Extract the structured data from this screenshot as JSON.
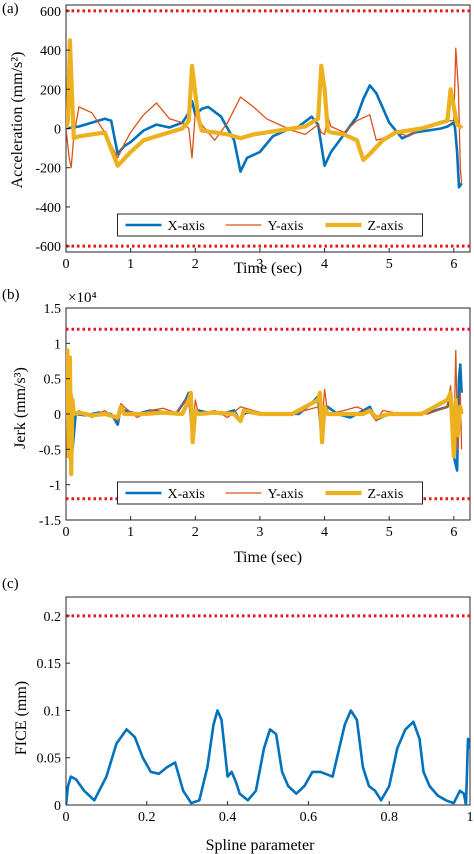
{
  "panel_labels": [
    "(a)",
    "(b)",
    "(c)"
  ],
  "colors": {
    "x": "#0072BD",
    "y": "#D95319",
    "z": "#EDB120",
    "limit": "#E8161B"
  },
  "chart_data": [
    {
      "type": "line",
      "panel": "(a)",
      "xlabel": "Time (sec)",
      "ylabel": "Acceleration (mm/s²)",
      "xlim": [
        0,
        6.25
      ],
      "ylim": [
        -630,
        630
      ],
      "xticks": [
        0,
        1,
        2,
        3,
        4,
        5,
        6
      ],
      "xtick_labels": [
        "0",
        "1",
        "2",
        "3",
        "4",
        "5",
        "6"
      ],
      "yticks": [
        -600,
        -400,
        -200,
        0,
        200,
        400,
        600
      ],
      "ytick_labels": [
        "-600",
        "-400",
        "-200",
        "0",
        "200",
        "400",
        "600"
      ],
      "limits": [
        600,
        -600
      ],
      "legend": {
        "placement": "bottom-center",
        "entries": [
          "X-axis",
          "Y-axis",
          "Z-axis"
        ]
      },
      "series": [
        {
          "name": "X-axis",
          "key": "x",
          "x": [
            0,
            0.2,
            0.4,
            0.6,
            0.7,
            0.8,
            0.9,
            1.0,
            1.2,
            1.4,
            1.6,
            1.8,
            1.9,
            1.95,
            2.0,
            2.1,
            2.2,
            2.4,
            2.6,
            2.7,
            2.8,
            3.0,
            3.2,
            3.4,
            3.6,
            3.8,
            3.9,
            4.0,
            4.1,
            4.3,
            4.5,
            4.6,
            4.7,
            4.8,
            5.0,
            5.2,
            5.4,
            5.6,
            5.8,
            5.9,
            6.0,
            6.02,
            6.05,
            6.08,
            6.12
          ],
          "y": [
            0,
            10,
            30,
            50,
            40,
            -130,
            -90,
            -70,
            -10,
            20,
            5,
            30,
            80,
            140,
            70,
            100,
            110,
            60,
            -60,
            -220,
            -150,
            -120,
            -40,
            -10,
            10,
            60,
            20,
            -190,
            -120,
            -30,
            60,
            150,
            220,
            180,
            30,
            -50,
            -20,
            -10,
            0,
            10,
            30,
            0,
            -120,
            -300,
            -280
          ]
        },
        {
          "name": "Y-axis",
          "key": "y",
          "x": [
            0,
            0.05,
            0.08,
            0.12,
            0.2,
            0.4,
            0.6,
            0.8,
            0.9,
            1.0,
            1.2,
            1.4,
            1.6,
            1.8,
            1.9,
            1.95,
            2.0,
            2.1,
            2.3,
            2.5,
            2.7,
            2.9,
            3.1,
            3.3,
            3.5,
            3.7,
            3.9,
            3.95,
            4.0,
            4.05,
            4.1,
            4.3,
            4.5,
            4.7,
            4.8,
            4.9,
            5.1,
            5.3,
            5.5,
            5.7,
            5.9,
            6.0,
            6.03,
            6.07,
            6.1,
            6.12
          ],
          "y": [
            0,
            -150,
            -200,
            -40,
            110,
            80,
            -20,
            -150,
            -80,
            -20,
            70,
            130,
            50,
            30,
            0,
            -150,
            80,
            20,
            -60,
            30,
            160,
            110,
            50,
            20,
            -10,
            -30,
            20,
            -20,
            -30,
            60,
            10,
            -20,
            40,
            70,
            -60,
            -50,
            -20,
            -40,
            0,
            20,
            40,
            40,
            410,
            200,
            -200,
            -280
          ]
        },
        {
          "name": "Z-axis",
          "key": "z",
          "x": [
            0,
            0.03,
            0.06,
            0.09,
            0.12,
            0.2,
            0.4,
            0.6,
            0.8,
            1.0,
            1.2,
            1.4,
            1.6,
            1.8,
            1.9,
            1.95,
            2.0,
            2.05,
            2.1,
            2.3,
            2.5,
            2.7,
            2.9,
            3.1,
            3.3,
            3.5,
            3.7,
            3.9,
            3.95,
            4.0,
            4.05,
            4.1,
            4.3,
            4.5,
            4.6,
            4.7,
            4.9,
            5.1,
            5.3,
            5.5,
            5.7,
            5.9,
            5.95,
            6.0,
            6.05,
            6.1,
            6.12
          ],
          "y": [
            0,
            40,
            450,
            200,
            -50,
            -40,
            -30,
            -20,
            -190,
            -120,
            -60,
            -40,
            -20,
            0,
            40,
            320,
            180,
            50,
            -10,
            -20,
            -30,
            -50,
            -30,
            -20,
            -10,
            0,
            10,
            50,
            320,
            200,
            -10,
            -20,
            -30,
            -60,
            -160,
            -130,
            -60,
            -20,
            -10,
            0,
            20,
            40,
            200,
            110,
            20,
            10,
            0
          ]
        }
      ]
    },
    {
      "type": "line",
      "panel": "(b)",
      "xlabel": "Time (sec)",
      "ylabel": "Jerk (mm/s³)",
      "multiplier": "×10⁴",
      "xlim": [
        0,
        6.25
      ],
      "ylim": [
        -1.5,
        1.5
      ],
      "xticks": [
        0,
        1,
        2,
        3,
        4,
        5,
        6
      ],
      "xtick_labels": [
        "0",
        "1",
        "2",
        "3",
        "4",
        "5",
        "6"
      ],
      "yticks": [
        -1.5,
        -1,
        -0.5,
        0,
        0.5,
        1,
        1.5
      ],
      "ytick_labels": [
        "-1.5",
        "-1",
        "-0.5",
        "0",
        "0.5",
        "1",
        "1.5"
      ],
      "limits": [
        1.2,
        -1.2
      ],
      "legend": {
        "placement": "bottom-center",
        "entries": [
          "X-axis",
          "Y-axis",
          "Z-axis"
        ]
      },
      "series": [
        {
          "name": "X-axis",
          "key": "x",
          "x": [
            0,
            0.05,
            0.1,
            0.15,
            0.3,
            0.5,
            0.7,
            0.8,
            0.85,
            0.9,
            1.1,
            1.3,
            1.5,
            1.7,
            1.85,
            1.9,
            1.95,
            2.0,
            2.05,
            2.2,
            2.4,
            2.6,
            2.7,
            2.75,
            2.8,
            3.0,
            3.3,
            3.6,
            3.8,
            3.9,
            3.95,
            4.0,
            4.05,
            4.2,
            4.4,
            4.6,
            4.7,
            4.8,
            5.0,
            5.3,
            5.6,
            5.9,
            5.95,
            6.0,
            6.05,
            6.08,
            6.1,
            6.12
          ],
          "y": [
            0,
            0.4,
            -0.5,
            0,
            -0.02,
            0.02,
            0,
            -0.15,
            0.1,
            0.05,
            0,
            0.05,
            0.03,
            0,
            0.2,
            0.3,
            -0.25,
            0,
            0.05,
            0.02,
            0,
            0.05,
            -0.1,
            0,
            0.02,
            0,
            0.01,
            0,
            0.15,
            0.25,
            -0.3,
            0,
            0.1,
            0,
            -0.05,
            0.05,
            0.1,
            -0.08,
            0,
            0,
            0.02,
            0.1,
            0.3,
            -0.6,
            -0.8,
            0.5,
            0.7,
            0.3
          ]
        },
        {
          "name": "Y-axis",
          "key": "y",
          "x": [
            0,
            0.03,
            0.06,
            0.09,
            0.12,
            0.2,
            0.4,
            0.6,
            0.8,
            0.85,
            0.9,
            1.1,
            1.3,
            1.5,
            1.7,
            1.9,
            1.95,
            2.0,
            2.05,
            2.3,
            2.5,
            2.7,
            2.9,
            3.1,
            3.5,
            3.9,
            3.95,
            4.0,
            4.05,
            4.3,
            4.5,
            4.7,
            4.8,
            4.9,
            5.2,
            5.6,
            5.9,
            5.95,
            6.0,
            6.03,
            6.06,
            6.1,
            6.12
          ],
          "y": [
            0,
            0.7,
            -0.7,
            0.3,
            0,
            0.05,
            -0.05,
            0.05,
            -0.1,
            0.15,
            0.1,
            -0.05,
            0.05,
            0.08,
            0.02,
            0.25,
            -0.35,
            0.2,
            0,
            0.05,
            -0.05,
            0.1,
            0.05,
            0,
            0,
            0.1,
            -0.3,
            0.35,
            0,
            0.05,
            0.1,
            0.02,
            -0.1,
            0.05,
            0,
            0,
            0.1,
            0.4,
            -0.4,
            0.9,
            -0.5,
            0.3,
            -0.5
          ]
        },
        {
          "name": "Z-axis",
          "key": "z",
          "x": [
            0,
            0.02,
            0.04,
            0.06,
            0.08,
            0.1,
            0.12,
            0.2,
            0.4,
            0.6,
            0.8,
            0.85,
            0.9,
            1.2,
            1.5,
            1.8,
            1.9,
            1.93,
            1.96,
            2.0,
            2.05,
            2.3,
            2.6,
            2.7,
            2.75,
            3.0,
            3.5,
            3.9,
            3.93,
            3.96,
            4.0,
            4.05,
            4.3,
            4.6,
            4.7,
            4.8,
            5.0,
            5.5,
            5.9,
            5.95,
            6.0,
            6.03,
            6.06,
            6.1,
            6.12
          ],
          "y": [
            0,
            0.9,
            -0.6,
            0.8,
            -0.85,
            0.2,
            0,
            0.02,
            -0.02,
            0,
            -0.05,
            0.1,
            0,
            0,
            0.02,
            0,
            0.2,
            0.3,
            -0.4,
            0.05,
            0,
            0.02,
            0,
            -0.1,
            0.05,
            0,
            0,
            0.2,
            0.3,
            -0.4,
            0.1,
            0,
            0,
            0,
            0.05,
            -0.05,
            0,
            0,
            0.2,
            0.3,
            -0.6,
            0.2,
            -0.3,
            0.1,
            0
          ]
        }
      ]
    },
    {
      "type": "line",
      "panel": "(c)",
      "xlabel": "Spline parameter",
      "ylabel": "FICE (mm)",
      "xlim": [
        0,
        1
      ],
      "ylim": [
        0,
        0.22
      ],
      "xticks": [
        0,
        0.2,
        0.4,
        0.6,
        0.8,
        1
      ],
      "xtick_labels": [
        "0",
        "0.2",
        "0.4",
        "0.6",
        "0.8",
        "1"
      ],
      "yticks": [
        0,
        0.05,
        0.1,
        0.15,
        0.2
      ],
      "ytick_labels": [
        "0",
        "0.05",
        "0.1",
        "0.15",
        "0.2"
      ],
      "limits": [
        0.2
      ],
      "series": [
        {
          "key": "x",
          "x": [
            0,
            0.005,
            0.012,
            0.025,
            0.045,
            0.07,
            0.1,
            0.125,
            0.15,
            0.17,
            0.19,
            0.21,
            0.23,
            0.25,
            0.27,
            0.29,
            0.31,
            0.33,
            0.35,
            0.365,
            0.375,
            0.385,
            0.395,
            0.4,
            0.41,
            0.42,
            0.43,
            0.45,
            0.47,
            0.49,
            0.505,
            0.52,
            0.535,
            0.55,
            0.57,
            0.59,
            0.61,
            0.63,
            0.66,
            0.69,
            0.705,
            0.72,
            0.735,
            0.75,
            0.765,
            0.78,
            0.8,
            0.82,
            0.84,
            0.86,
            0.875,
            0.885,
            0.9,
            0.92,
            0.94,
            0.96,
            0.975,
            0.985,
            0.99,
            0.995,
            1.0
          ],
          "y": [
            0,
            0.02,
            0.03,
            0.027,
            0.015,
            0.005,
            0.03,
            0.065,
            0.08,
            0.072,
            0.05,
            0.035,
            0.033,
            0.04,
            0.045,
            0.015,
            0.002,
            0.005,
            0.04,
            0.085,
            0.1,
            0.09,
            0.05,
            0.03,
            0.035,
            0.025,
            0.012,
            0.005,
            0.015,
            0.06,
            0.08,
            0.075,
            0.035,
            0.02,
            0.012,
            0.02,
            0.035,
            0.035,
            0.03,
            0.085,
            0.1,
            0.09,
            0.04,
            0.02,
            0.015,
            0.005,
            0.02,
            0.06,
            0.08,
            0.088,
            0.07,
            0.035,
            0.02,
            0.01,
            0.005,
            0.002,
            0.015,
            0.012,
            0.0,
            0.07,
            0.06
          ]
        }
      ]
    }
  ]
}
